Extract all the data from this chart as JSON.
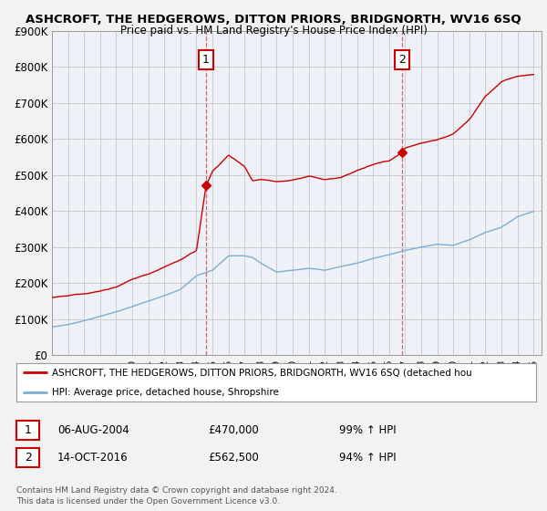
{
  "title": "ASHCROFT, THE HEDGEROWS, DITTON PRIORS, BRIDGNORTH, WV16 6SQ",
  "subtitle": "Price paid vs. HM Land Registry's House Price Index (HPI)",
  "ylim": [
    0,
    900000
  ],
  "yticks": [
    0,
    100000,
    200000,
    300000,
    400000,
    500000,
    600000,
    700000,
    800000,
    900000
  ],
  "ytick_labels": [
    "£0",
    "£100K",
    "£200K",
    "£300K",
    "£400K",
    "£500K",
    "£600K",
    "£700K",
    "£800K",
    "£900K"
  ],
  "background_color": "#f2f2f2",
  "plot_bg_color": "#eef2f8",
  "red_line_color": "#cc0000",
  "blue_line_color": "#7eadd4",
  "marker1_x": 2004.6,
  "marker1_y": 470000,
  "marker2_x": 2016.8,
  "marker2_y": 562500,
  "marker1_label": "1",
  "marker2_label": "2",
  "legend_red_label": "ASHCROFT, THE HEDGEROWS, DITTON PRIORS, BRIDGNORTH, WV16 6SQ (detached hou",
  "legend_blue_label": "HPI: Average price, detached house, Shropshire",
  "annot1_date": "06-AUG-2004",
  "annot1_price": "£470,000",
  "annot1_hpi": "99% ↑ HPI",
  "annot2_date": "14-OCT-2016",
  "annot2_price": "£562,500",
  "annot2_hpi": "94% ↑ HPI",
  "footer": "Contains HM Land Registry data © Crown copyright and database right 2024.\nThis data is licensed under the Open Government Licence v3.0.",
  "xmin": 1995,
  "xmax": 2025.5,
  "red_hpi_x": [
    1995,
    1996,
    1997,
    1998,
    1999,
    2000,
    2001,
    2002,
    2003,
    2004.0,
    2004.6,
    2005,
    2006,
    2007,
    2007.5,
    2008,
    2009,
    2010,
    2011,
    2012,
    2013,
    2014,
    2015,
    2016.0,
    2016.8,
    2017,
    2018,
    2019,
    2020,
    2021,
    2022,
    2023,
    2024,
    2025
  ],
  "red_hpi_y": [
    160000,
    163000,
    170000,
    178000,
    190000,
    210000,
    225000,
    245000,
    265000,
    290000,
    470000,
    510000,
    555000,
    525000,
    485000,
    490000,
    485000,
    490000,
    500000,
    490000,
    495000,
    515000,
    530000,
    540000,
    562500,
    575000,
    590000,
    600000,
    615000,
    655000,
    720000,
    760000,
    775000,
    780000
  ],
  "blue_hpi_x": [
    1995,
    1996,
    1997,
    1998,
    1999,
    2000,
    2001,
    2002,
    2003,
    2004,
    2005,
    2006,
    2007,
    2007.5,
    2008,
    2009,
    2010,
    2011,
    2012,
    2013,
    2014,
    2015,
    2016,
    2017,
    2018,
    2019,
    2020,
    2021,
    2022,
    2023,
    2024,
    2025
  ],
  "blue_hpi_y": [
    78000,
    85000,
    95000,
    108000,
    120000,
    135000,
    150000,
    165000,
    182000,
    220000,
    235000,
    275000,
    275000,
    270000,
    255000,
    230000,
    235000,
    240000,
    235000,
    245000,
    255000,
    268000,
    278000,
    290000,
    300000,
    308000,
    305000,
    320000,
    340000,
    355000,
    385000,
    400000
  ]
}
